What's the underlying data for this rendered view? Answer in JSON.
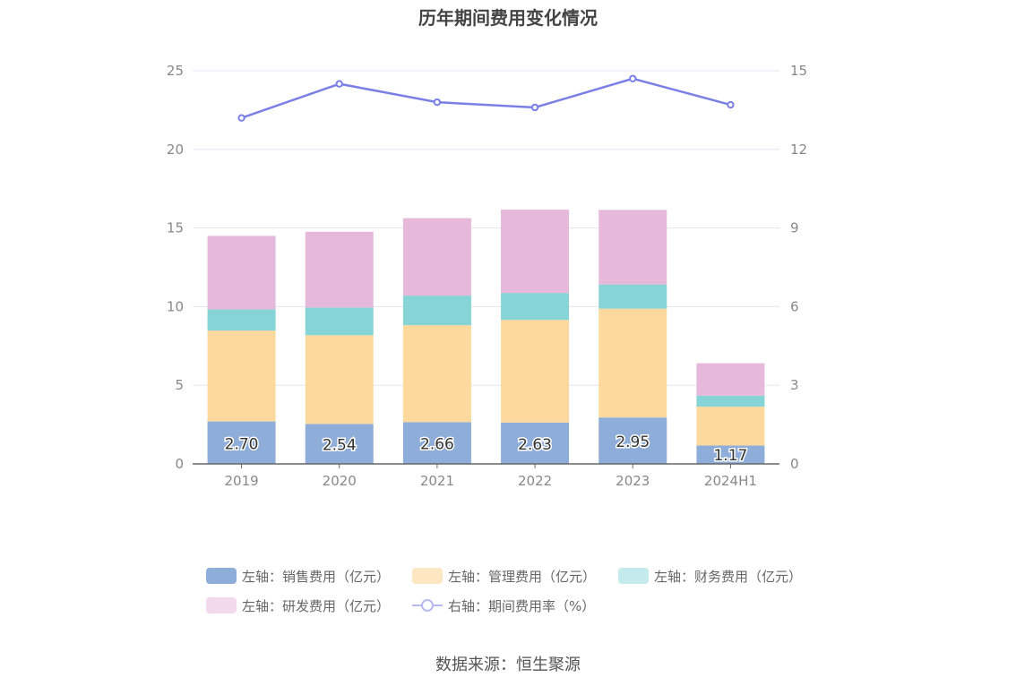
{
  "title": "历年期间费用变化情况",
  "source": "数据来源：恒生聚源",
  "colors": {
    "sales": "#8eadd9",
    "admin": "#fdd99d",
    "finance": "#86d4d6",
    "rnd": "#e6b9da",
    "rate": "#7a80e6",
    "grid": "#e3e6f3",
    "axis_text": "#888888"
  },
  "legend": [
    {
      "key": "sales",
      "label": "左轴：销售费用（亿元）",
      "type": "bar"
    },
    {
      "key": "admin",
      "label": "左轴：管理费用（亿元）",
      "type": "bar"
    },
    {
      "key": "finance",
      "label": "左轴：财务费用（亿元）",
      "type": "bar"
    },
    {
      "key": "rnd",
      "label": "左轴：研发费用（亿元）",
      "type": "bar"
    },
    {
      "key": "rate",
      "label": "右轴：期间费用率（%）",
      "type": "line"
    }
  ],
  "chart_data": {
    "type": "bar",
    "stacked": true,
    "categories": [
      "2019",
      "2020",
      "2021",
      "2022",
      "2023",
      "2024H1"
    ],
    "left_axis": {
      "min": 0,
      "max": 25,
      "ticks": [
        0,
        5,
        10,
        15,
        20,
        25
      ]
    },
    "right_axis": {
      "min": 0,
      "max": 15,
      "ticks": [
        0,
        3,
        6,
        9,
        12,
        15
      ]
    },
    "series": [
      {
        "key": "sales",
        "name": "左轴：销售费用（亿元）",
        "axis": "left",
        "values": [
          2.7,
          2.54,
          2.66,
          2.63,
          2.95,
          1.17
        ],
        "labels": [
          "2.70",
          "2.54",
          "2.66",
          "2.63",
          "2.95",
          "1.17"
        ]
      },
      {
        "key": "admin",
        "name": "左轴：管理费用（亿元）",
        "axis": "left",
        "values": [
          5.78,
          5.64,
          6.16,
          6.53,
          6.92,
          2.47
        ]
      },
      {
        "key": "finance",
        "name": "左轴：财务费用（亿元）",
        "axis": "left",
        "values": [
          1.35,
          1.76,
          1.88,
          1.71,
          1.54,
          0.7
        ]
      },
      {
        "key": "rnd",
        "name": "左轴：研发费用（亿元）",
        "axis": "left",
        "values": [
          4.67,
          4.82,
          4.93,
          5.3,
          4.74,
          2.06
        ]
      },
      {
        "key": "rate",
        "name": "右轴：期间费用率（%）",
        "axis": "right",
        "type": "line",
        "values": [
          13.2,
          14.5,
          13.8,
          13.6,
          14.7,
          13.7
        ]
      }
    ],
    "grid": true,
    "legend_position": "bottom"
  }
}
